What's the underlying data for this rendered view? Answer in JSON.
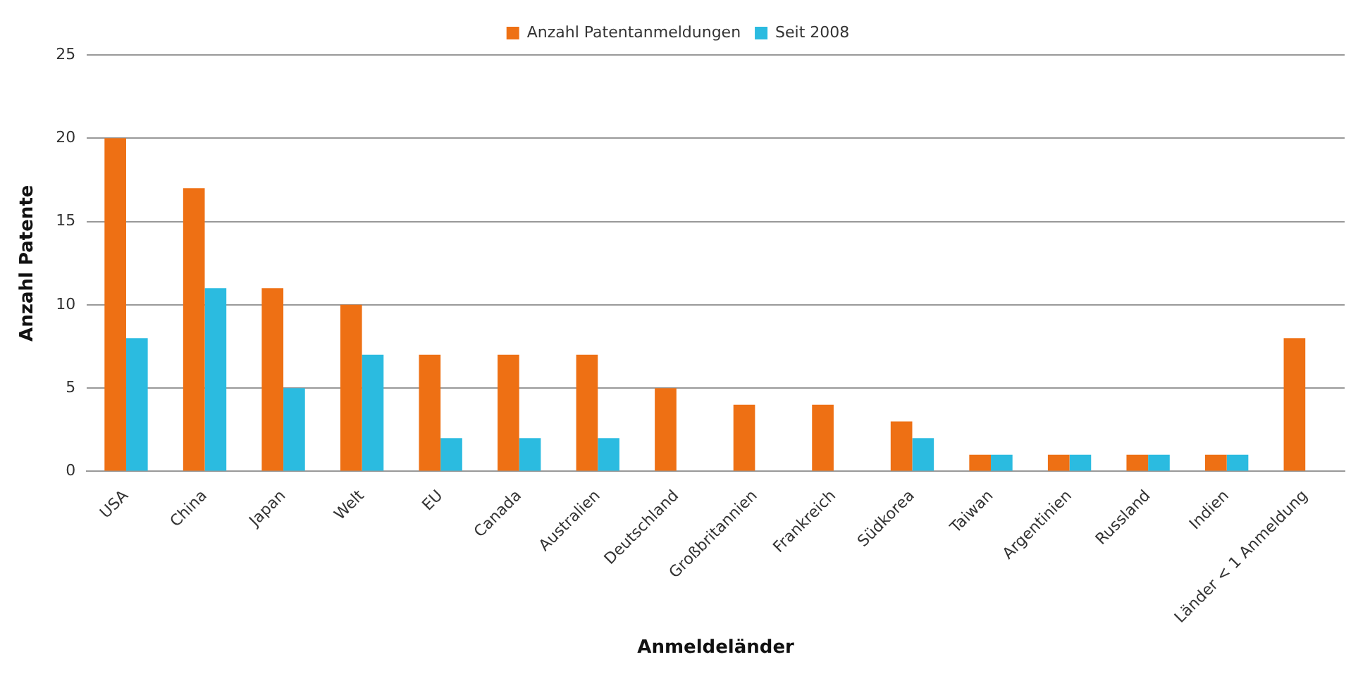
{
  "chart_data": {
    "type": "bar",
    "xlabel": "Anmeldeländer",
    "ylabel": "Anzahl Patente",
    "categories": [
      "USA",
      "China",
      "Japan",
      "Welt",
      "EU",
      "Canada",
      "Australien",
      "Deutschland",
      "Großbritannien",
      "Frankreich",
      "Südkorea",
      "Taiwan",
      "Argentinien",
      "Russland",
      "Indien",
      "Länder < 1 Anmeldung"
    ],
    "series": [
      {
        "name": "Anzahl Patentanmeldungen",
        "color": "#ee7014",
        "values": [
          20,
          17,
          11,
          10,
          7,
          7,
          7,
          5,
          4,
          4,
          3,
          1,
          1,
          1,
          1,
          8
        ]
      },
      {
        "name": "Seit 2008",
        "color": "#2bbbe0",
        "values": [
          8,
          11,
          5,
          7,
          2,
          2,
          2,
          null,
          null,
          null,
          2,
          1,
          1,
          1,
          1,
          null
        ]
      }
    ],
    "ylim": [
      0,
      25
    ],
    "yticks": [
      0,
      5,
      10,
      15,
      20,
      25
    ],
    "grid": "y",
    "legend": "top"
  }
}
